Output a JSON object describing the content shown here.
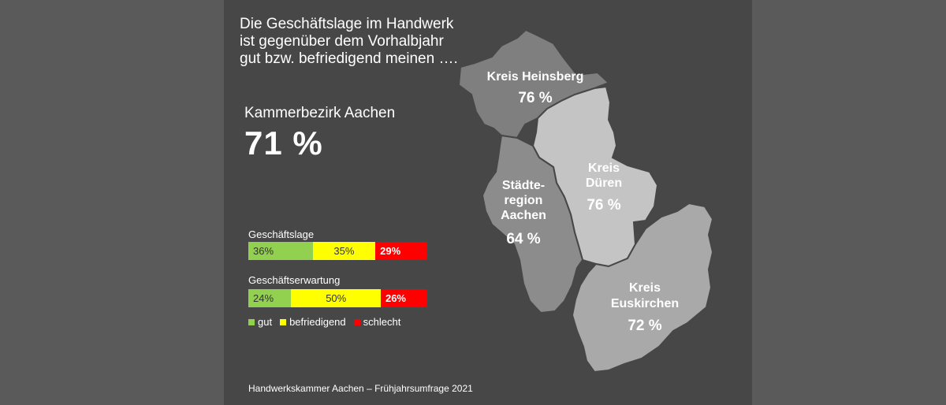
{
  "headline": [
    "Die Geschäftslage im Handwerk",
    "ist gegenüber dem Vorhalbjahr",
    "gut bzw. befriedigend meinen …."
  ],
  "kammerbezirk": {
    "label": "Kammerbezirk Aachen",
    "value": "71 %"
  },
  "bars": [
    {
      "title": "Geschäftslage",
      "segments": [
        {
          "category": "gut",
          "value": 36,
          "label": "36%"
        },
        {
          "category": "befriedigend",
          "value": 35,
          "label": "35%"
        },
        {
          "category": "schlecht",
          "value": 29,
          "label": "29%"
        }
      ]
    },
    {
      "title": "Geschäftserwartung",
      "segments": [
        {
          "category": "gut",
          "value": 24,
          "label": "24%"
        },
        {
          "category": "befriedigend",
          "value": 50,
          "label": "50%"
        },
        {
          "category": "schlecht",
          "value": 26,
          "label": "26%"
        }
      ]
    }
  ],
  "legend": [
    {
      "label": "gut",
      "color": "#92d050"
    },
    {
      "label": "befriedigend",
      "color": "#ffff00"
    },
    {
      "label": "schlecht",
      "color": "#ff0000"
    }
  ],
  "regions": [
    {
      "name_lines": [
        "Kreis Heinsberg"
      ],
      "value": "76 %",
      "color": "#7f7f7f"
    },
    {
      "name_lines": [
        "Kreis",
        "Düren"
      ],
      "value": "76 %",
      "color": "#c4c4c4"
    },
    {
      "name_lines": [
        "Städte-",
        "region",
        "Aachen"
      ],
      "value": "64 %",
      "color": "#8c8c8c"
    },
    {
      "name_lines": [
        "Kreis",
        "Euskirchen"
      ],
      "value": "72 %",
      "color": "#a9a9a9"
    }
  ],
  "footer": "Handwerkskammer Aachen – Frühjahrsumfrage 2021"
}
